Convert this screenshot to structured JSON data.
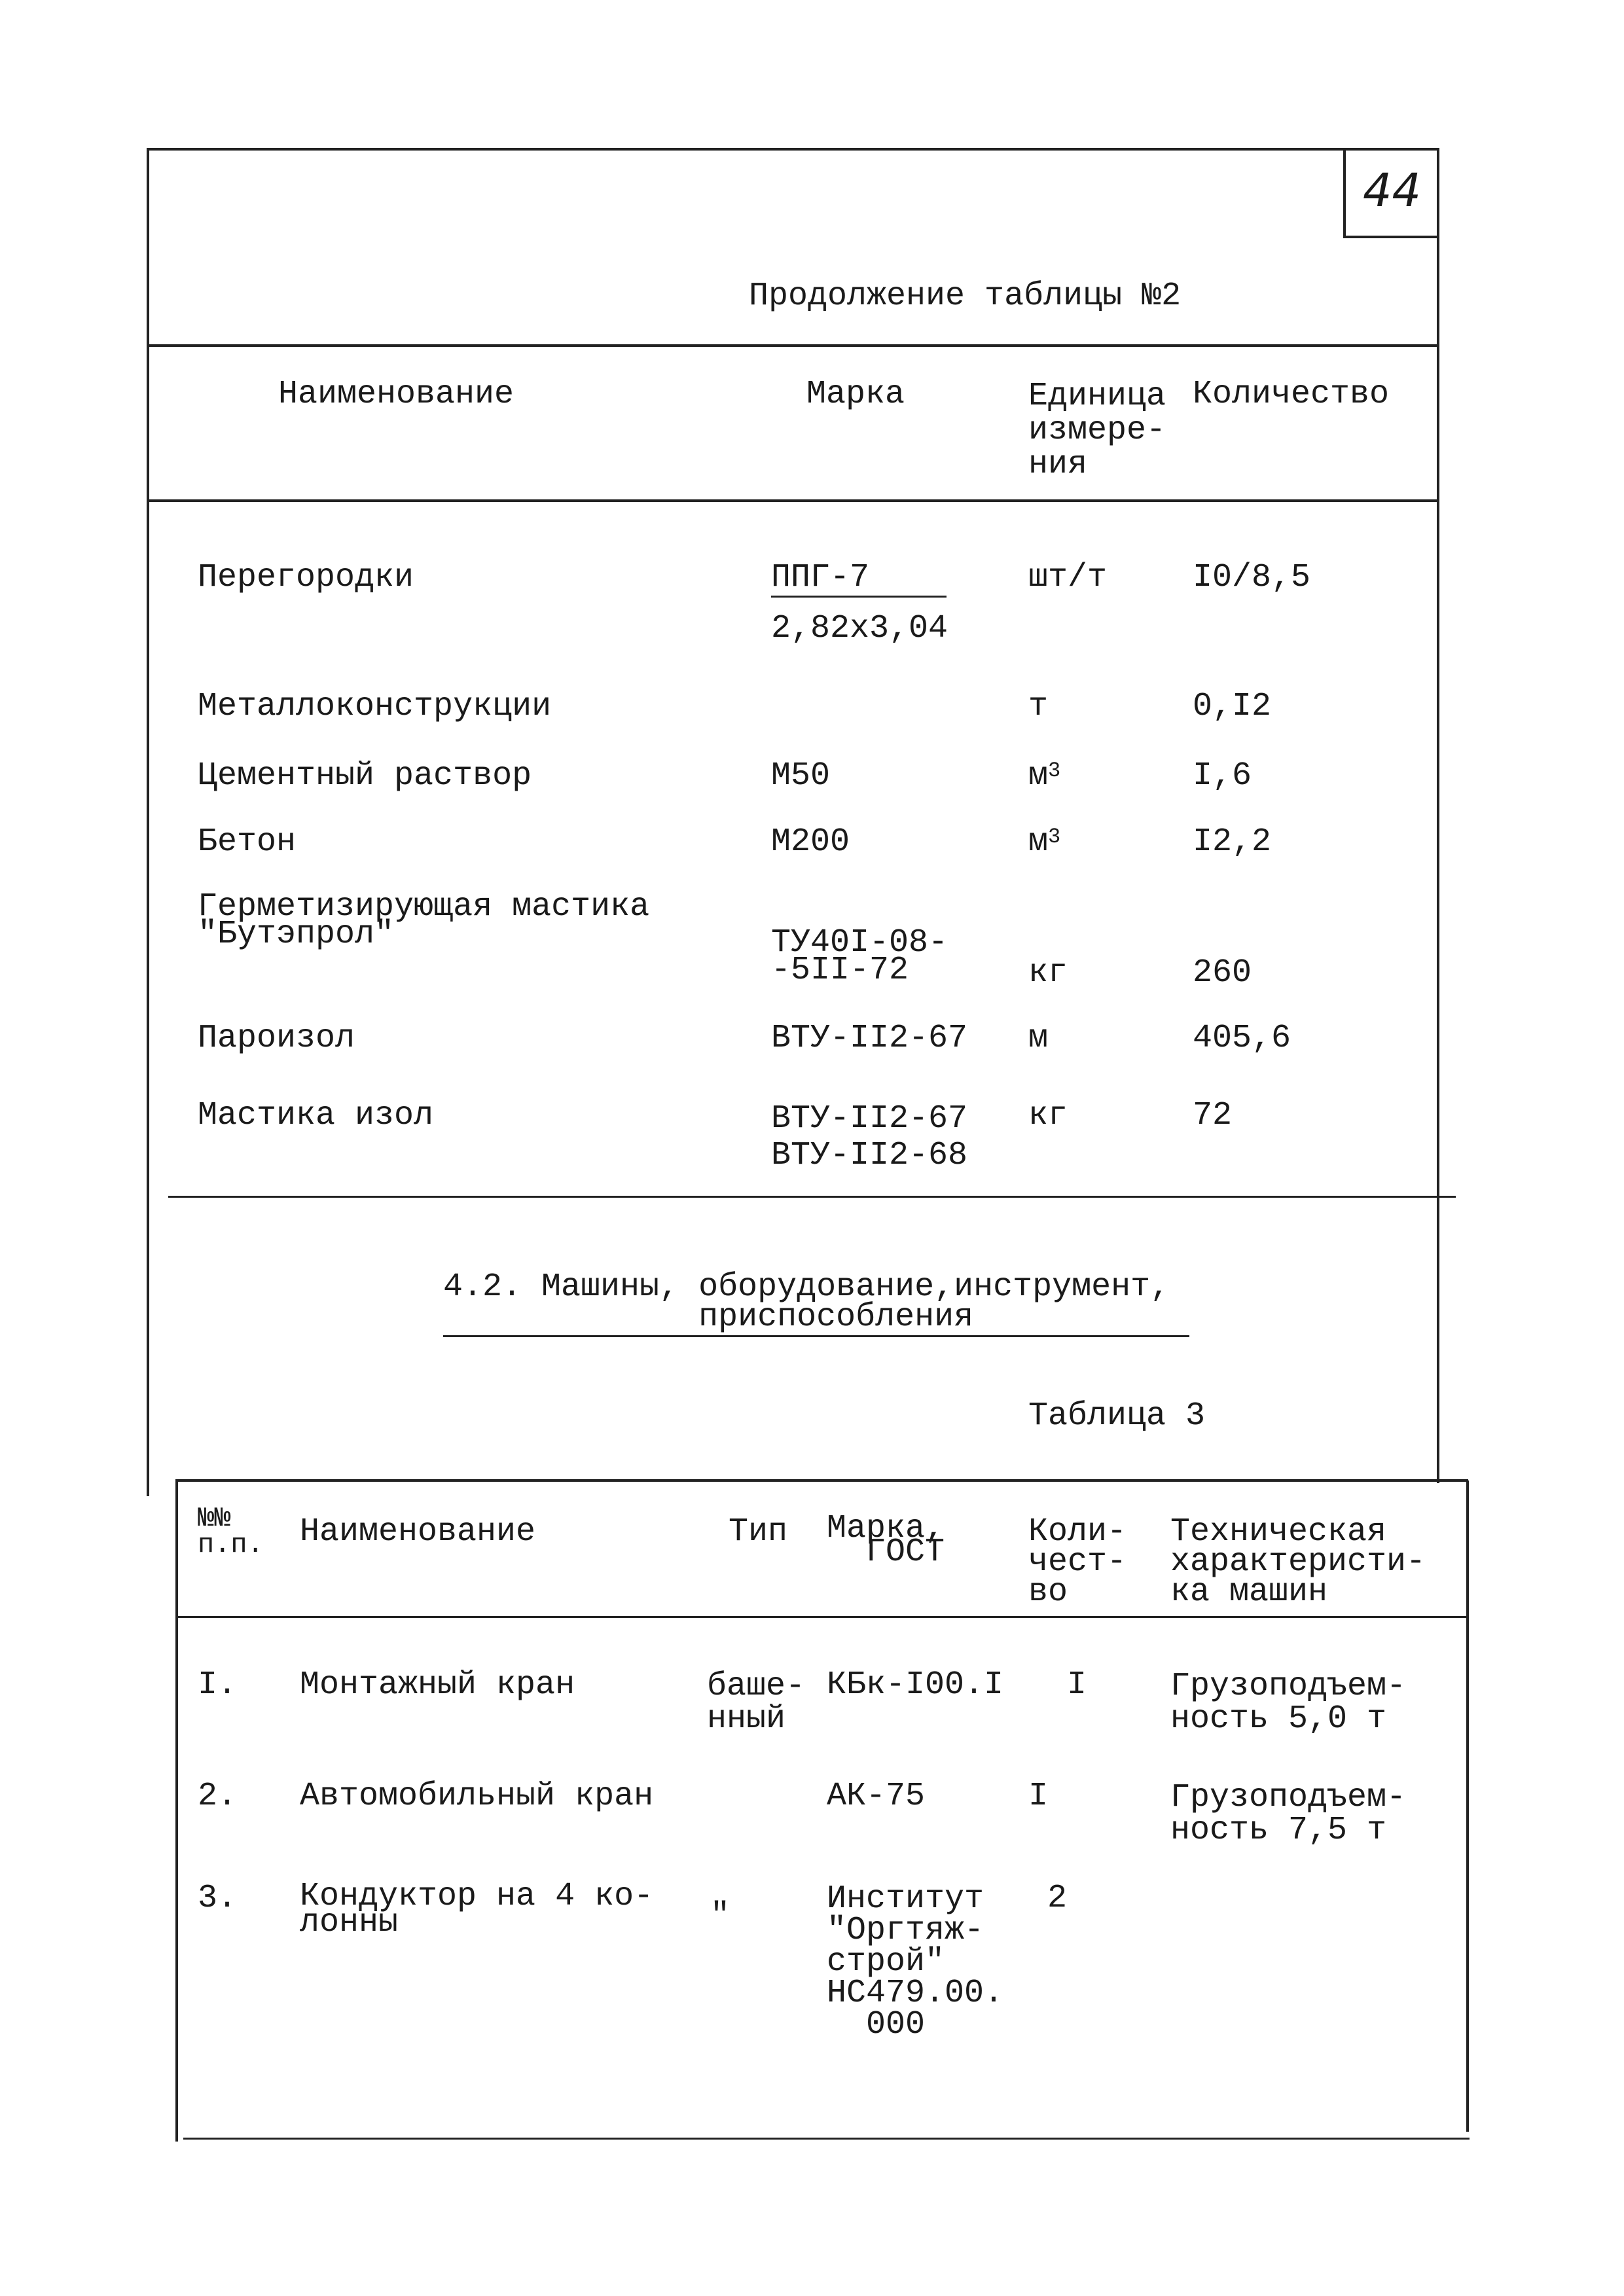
{
  "page_number": "44",
  "table2": {
    "caption": "Продолжение таблицы №2",
    "headers": [
      "Наименование",
      "Марка",
      "Единица\nизмере-\nния",
      "Количество"
    ],
    "rows": [
      {
        "name": "Перегородки",
        "mark": "ППГ-7",
        "mark_sub": "2,82x3,04",
        "unit": "шт/т",
        "qty": "I0/8,5"
      },
      {
        "name": "Металлоконструкции",
        "mark": "",
        "unit": "т",
        "qty": "0,I2"
      },
      {
        "name": "Цементный раствор",
        "mark": "М50",
        "unit": "м",
        "unit_sup": "3",
        "qty": "I,6"
      },
      {
        "name": "Бетон",
        "mark": "М200",
        "unit": "м",
        "unit_sup": "3",
        "qty": "I2,2"
      },
      {
        "name": "Герметизирующая мастика\n\"Бутэпрол\"",
        "mark": "ТУ40I-08-\n-5II-72",
        "unit": "кг",
        "qty": "260"
      },
      {
        "name": "Пароизол",
        "mark": "ВТУ-II2-67",
        "unit": "м",
        "qty": "405,6"
      },
      {
        "name": "Мастика изол",
        "mark": "ВТУ-II2-67\nВТУ-II2-68",
        "unit": "кг",
        "qty": "72"
      }
    ]
  },
  "section": {
    "heading": "4.2. Машины, оборудование,инструмент,\n             приспособления"
  },
  "table3": {
    "caption": "Таблица 3",
    "headers": [
      "№№\nп.п.",
      "Наименование",
      "Тип",
      "Марка,\n  ГОСТ",
      "Коли-\nчест-\nво",
      "Техническая\nхарактеристи-\nка машин"
    ],
    "rows": [
      {
        "num": "I.",
        "name": "Монтажный кран",
        "type": "баше-\nнный",
        "mark": "КБк-I00.I",
        "qty": "I",
        "spec": "Грузоподъем-\nность 5,0 т"
      },
      {
        "num": "2.",
        "name": "Автомобильный кран",
        "type": "",
        "mark": "АК-75",
        "qty": "I",
        "spec": "Грузоподъем-\nность 7,5 т"
      },
      {
        "num": "3.",
        "name": "Кондуктор на 4 ко-\nлонны",
        "type": "\"",
        "mark": "Институт\n\"Оргтяж-\nстрой\"\nНС479.00.\n  000",
        "qty": "2",
        "spec": ""
      }
    ]
  }
}
